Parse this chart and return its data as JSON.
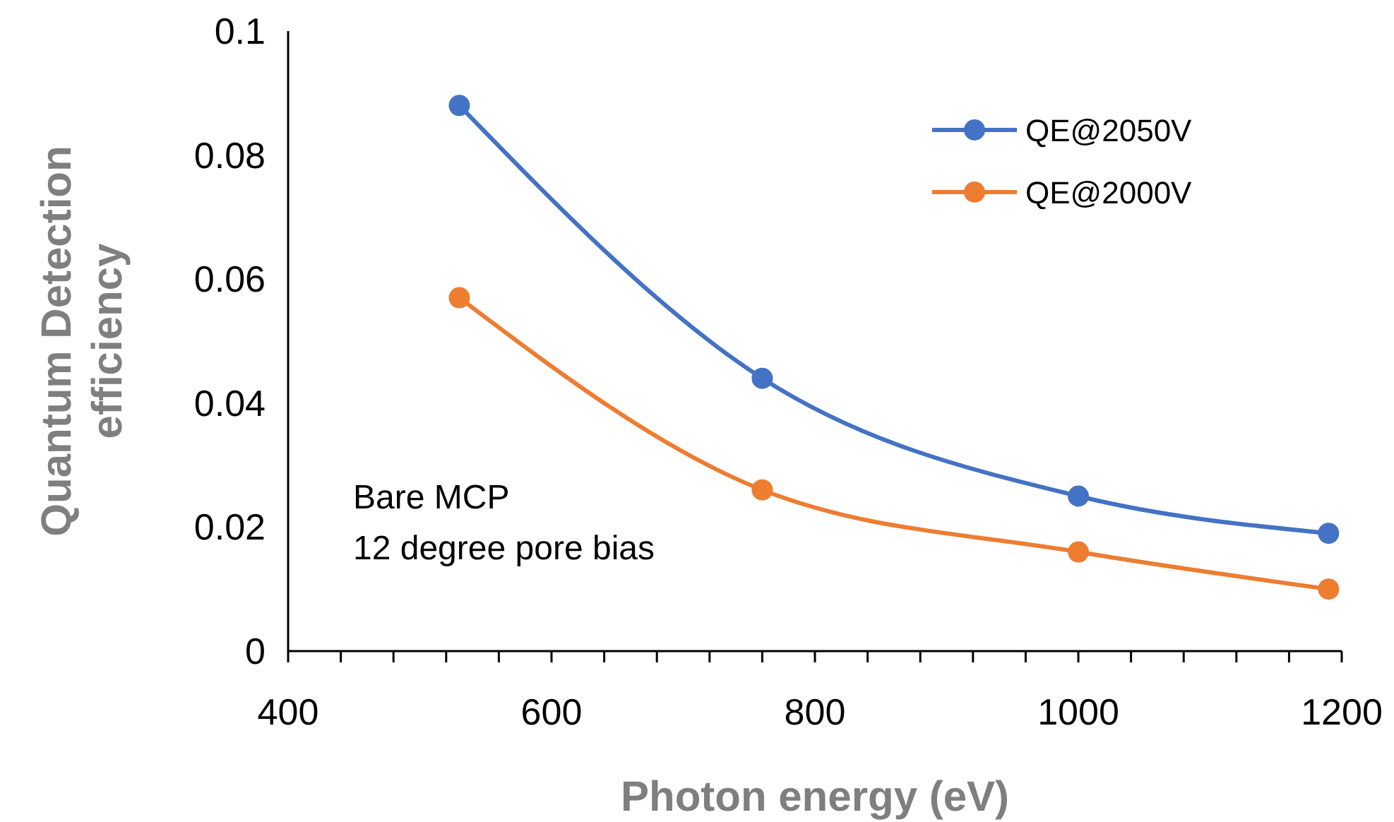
{
  "chart_data": {
    "type": "line",
    "xlabel": "Photon energy (eV)",
    "ylabel": "Quantum Detection efficiency",
    "x": [
      530,
      760,
      1000,
      1190
    ],
    "series": [
      {
        "name": "QE@2050V",
        "color": "#4472c4",
        "values": [
          0.088,
          0.044,
          0.025,
          0.019
        ]
      },
      {
        "name": "QE@2000V",
        "color": "#ed7d31",
        "values": [
          0.057,
          0.026,
          0.016,
          0.01
        ]
      }
    ],
    "xlim": [
      400,
      1200
    ],
    "xticks": [
      400,
      {
        "value": 440,
        "label": null
      },
      {
        "value": 480,
        "label": null
      },
      {
        "value": 520,
        "label": null
      },
      {
        "value": 560,
        "label": null
      },
      600,
      {
        "value": 640,
        "label": null
      },
      {
        "value": 680,
        "label": null
      },
      {
        "value": 720,
        "label": null
      },
      {
        "value": 760,
        "label": null
      },
      800,
      {
        "value": 840,
        "label": null
      },
      {
        "value": 880,
        "label": null
      },
      {
        "value": 920,
        "label": null
      },
      {
        "value": 960,
        "label": null
      },
      1000,
      {
        "value": 1040,
        "label": null
      },
      {
        "value": 1080,
        "label": null
      },
      {
        "value": 1120,
        "label": null
      },
      {
        "value": 1160,
        "label": null
      },
      1200
    ],
    "ylim": [
      0,
      0.1
    ],
    "yticks": [
      0,
      0.02,
      0.04,
      0.06,
      0.08,
      0.1
    ],
    "grid": false,
    "legend": "top right",
    "marker": "circle",
    "line_style": "solid",
    "annotations": [
      "Bare MCP",
      "12 degree pore bias"
    ]
  }
}
